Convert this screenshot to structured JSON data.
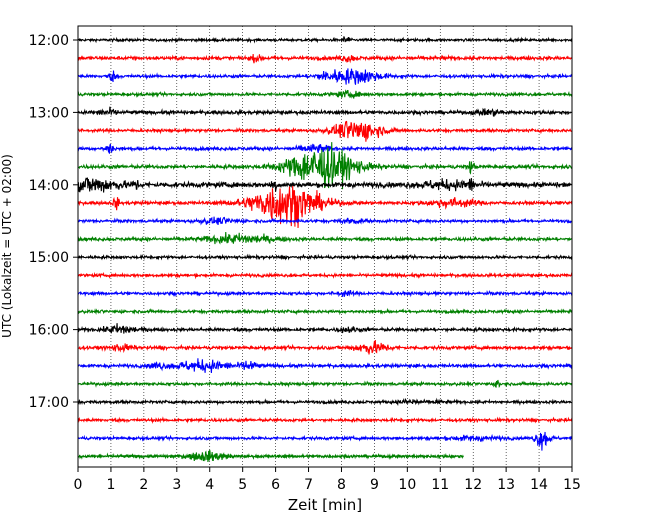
{
  "chart_data": {
    "type": "line",
    "subtype": "helicorder",
    "xlabel": "Zeit  [min]",
    "ylabel": "UTC (Lokalzeit = UTC + 02:00)",
    "xlim": [
      0,
      15
    ],
    "x_ticks": [
      "0",
      "1",
      "2",
      "3",
      "4",
      "5",
      "6",
      "7",
      "8",
      "9",
      "10",
      "11",
      "12",
      "13",
      "14",
      "15"
    ],
    "y_ticks": [
      "12:00",
      "13:00",
      "14:00",
      "15:00",
      "16:00",
      "17:00"
    ],
    "grid": {
      "x": true,
      "style": "dotted"
    },
    "line_minutes": 15,
    "trace_colors": [
      "#000000",
      "#ff0000",
      "#0000ff",
      "#008000"
    ],
    "traces": [
      {
        "start": "12:00",
        "noise": 0.16,
        "events": [
          {
            "t": 8.15,
            "amp": 1.1,
            "width": 0.05
          }
        ]
      },
      {
        "start": "12:15",
        "noise": 0.22,
        "events": [
          {
            "t": 5.4,
            "amp": 0.35,
            "width": 0.1
          },
          {
            "t": 8.2,
            "amp": 0.4,
            "width": 0.15
          }
        ]
      },
      {
        "start": "12:30",
        "noise": 0.18,
        "events": [
          {
            "t": 1.05,
            "amp": 0.6,
            "width": 0.08
          },
          {
            "t": 8.45,
            "amp": 0.9,
            "width": 0.5
          },
          {
            "t": 7.6,
            "amp": 0.4,
            "width": 0.3
          }
        ]
      },
      {
        "start": "12:45",
        "noise": 0.18,
        "events": [
          {
            "t": 8.2,
            "amp": 0.3,
            "width": 0.3
          }
        ]
      },
      {
        "start": "13:00",
        "noise": 0.22,
        "events": [
          {
            "t": 0.9,
            "amp": 0.35,
            "width": 0.2
          },
          {
            "t": 12.5,
            "amp": 0.3,
            "width": 0.3
          }
        ]
      },
      {
        "start": "13:15",
        "noise": 0.18,
        "events": [
          {
            "t": 8.5,
            "amp": 1.3,
            "width": 0.5
          }
        ]
      },
      {
        "start": "13:30",
        "noise": 0.2,
        "events": [
          {
            "t": 0.95,
            "amp": 0.9,
            "width": 0.08
          },
          {
            "t": 7.2,
            "amp": 0.45,
            "width": 0.3
          }
        ]
      },
      {
        "start": "13:45",
        "noise": 0.22,
        "events": [
          {
            "t": 7.4,
            "amp": 2.6,
            "width": 0.7
          },
          {
            "t": 11.95,
            "amp": 0.8,
            "width": 0.06
          }
        ]
      },
      {
        "start": "14:00",
        "noise": 0.3,
        "events": [
          {
            "t": 0.4,
            "amp": 0.9,
            "width": 0.6
          },
          {
            "t": 5.95,
            "amp": 1.0,
            "width": 0.06
          },
          {
            "t": 1.75,
            "amp": 0.6,
            "width": 0.06
          },
          {
            "t": 11.9,
            "amp": 0.8,
            "width": 0.06
          },
          {
            "t": 11.2,
            "amp": 0.45,
            "width": 0.6
          }
        ]
      },
      {
        "start": "14:15",
        "noise": 0.2,
        "events": [
          {
            "t": 6.3,
            "amp": 2.6,
            "width": 0.7
          },
          {
            "t": 1.15,
            "amp": 0.8,
            "width": 0.06
          },
          {
            "t": 11.4,
            "amp": 0.5,
            "width": 0.5
          }
        ]
      },
      {
        "start": "14:30",
        "noise": 0.18,
        "events": [
          {
            "t": 4.2,
            "amp": 0.3,
            "width": 0.4
          },
          {
            "t": 8.3,
            "amp": 0.3,
            "width": 0.2
          }
        ]
      },
      {
        "start": "14:45",
        "noise": 0.2,
        "events": [
          {
            "t": 4.9,
            "amp": 0.55,
            "width": 0.7
          }
        ]
      },
      {
        "start": "15:00",
        "noise": 0.18,
        "events": []
      },
      {
        "start": "15:15",
        "noise": 0.18,
        "events": []
      },
      {
        "start": "15:30",
        "noise": 0.18,
        "events": [
          {
            "t": 8.1,
            "amp": 0.3,
            "width": 0.15
          }
        ]
      },
      {
        "start": "15:45",
        "noise": 0.18,
        "events": []
      },
      {
        "start": "16:00",
        "noise": 0.2,
        "events": [
          {
            "t": 1.3,
            "amp": 0.6,
            "width": 0.3
          },
          {
            "t": 8.2,
            "amp": 0.3,
            "width": 0.2
          }
        ]
      },
      {
        "start": "16:15",
        "noise": 0.2,
        "events": [
          {
            "t": 1.3,
            "amp": 0.35,
            "width": 0.25
          },
          {
            "t": 8.9,
            "amp": 0.7,
            "width": 0.35
          }
        ]
      },
      {
        "start": "16:30",
        "noise": 0.2,
        "events": [
          {
            "t": 3.8,
            "amp": 0.65,
            "width": 0.6
          },
          {
            "t": 5.2,
            "amp": 0.6,
            "width": 0.15
          },
          {
            "t": 2.4,
            "amp": 0.35,
            "width": 0.15
          }
        ]
      },
      {
        "start": "16:45",
        "noise": 0.18,
        "events": [
          {
            "t": 12.75,
            "amp": 0.6,
            "width": 0.06
          }
        ]
      },
      {
        "start": "17:00",
        "noise": 0.18,
        "events": [
          {
            "t": 10.1,
            "amp": 0.35,
            "width": 0.2
          },
          {
            "t": 10.9,
            "amp": 0.3,
            "width": 0.08
          }
        ]
      },
      {
        "start": "17:15",
        "noise": 0.18,
        "events": []
      },
      {
        "start": "17:30",
        "noise": 0.18,
        "events": [
          {
            "t": 14.1,
            "amp": 1.2,
            "width": 0.15
          },
          {
            "t": 12.0,
            "amp": 0.25,
            "width": 0.5
          }
        ]
      },
      {
        "start": "17:45",
        "noise": 0.18,
        "end": 11.7,
        "events": [
          {
            "t": 3.9,
            "amp": 0.55,
            "width": 0.4
          }
        ]
      }
    ]
  }
}
